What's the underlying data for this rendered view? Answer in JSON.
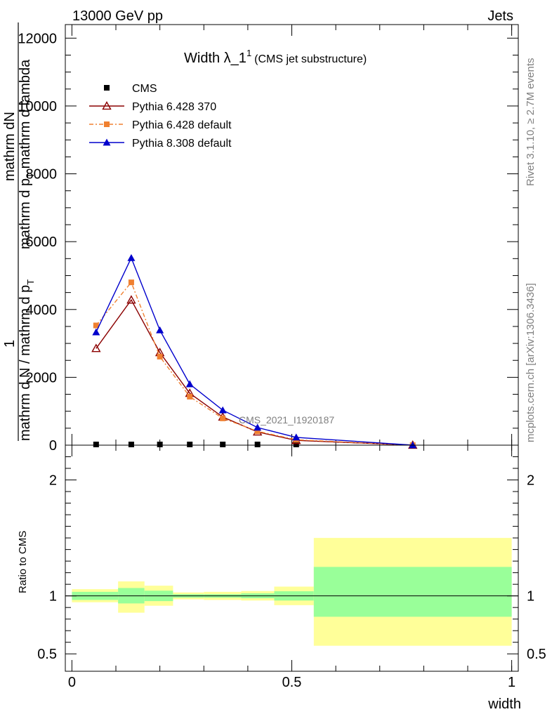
{
  "header": {
    "left": "13000 GeV pp",
    "right": "Jets"
  },
  "side": {
    "rivet": "Rivet 3.1.10, ≥ 2.7M events",
    "mcplots": "mcplots.cern.ch [arXiv:1306.3436]"
  },
  "title": {
    "main": "Width λ_1",
    "sup": "1",
    "sub": "(CMS jet substructure)"
  },
  "watermark": "CMS_2021_I1920187",
  "ylabel_top": {
    "numer1": "mathrm dN",
    "numer2": "mathrm d p",
    "numer2_sub": "T",
    "numer2_rest": " mathrm d lambda",
    "lead": "1",
    "denom1": "mathrm d N / mathrm d p",
    "denom1_sub": "T"
  },
  "ylabel_ratio": "Ratio to CMS",
  "xlabel": "width",
  "colors": {
    "cms": "#000000",
    "py6_370": "#8b0000",
    "py6_default": "#f08030",
    "py8_default": "#0000cc",
    "band_inner": "#99ff99",
    "band_outer": "#ffff99"
  },
  "chart_data": [
    {
      "type": "line",
      "xlim": [
        -0.015,
        1.015
      ],
      "ylim": [
        0,
        12400
      ],
      "yticks": [
        0,
        2000,
        4000,
        6000,
        8000,
        10000,
        12000
      ],
      "ytick_labels": [
        "0",
        "2000",
        "4000",
        "6000",
        "8000",
        "10000",
        "12000"
      ],
      "legend_position": "top-left",
      "x": [
        0.055,
        0.135,
        0.2,
        0.268,
        0.343,
        0.422,
        0.51,
        0.775
      ],
      "series": [
        {
          "name": "CMS",
          "marker": "filled-square",
          "values": [
            5,
            5,
            5,
            5,
            5,
            5,
            5,
            0
          ]
        },
        {
          "name": "Pythia 6.428 370",
          "marker": "open-triangle",
          "values": [
            2850,
            4280,
            2730,
            1530,
            830,
            390,
            140,
            0
          ]
        },
        {
          "name": "Pythia 6.428 default",
          "marker": "filled-square",
          "dashed": true,
          "values": [
            3530,
            4800,
            2610,
            1430,
            790,
            410,
            160,
            0
          ]
        },
        {
          "name": "Pythia 8.308 default",
          "marker": "filled-triangle",
          "values": [
            3330,
            5520,
            3390,
            1800,
            1030,
            520,
            230,
            0
          ]
        }
      ]
    },
    {
      "type": "area",
      "ylabel": "Ratio to CMS",
      "xlabel": "width",
      "xlim": [
        -0.015,
        1.015
      ],
      "ylim": [
        0.35,
        2.3
      ],
      "yticks": [
        0.5,
        1,
        2
      ],
      "ytick_labels": [
        "0.5",
        "1",
        "2"
      ],
      "xticks": [
        0,
        0.5,
        1
      ],
      "xtick_labels": [
        "0",
        "0.5",
        "1"
      ],
      "reference": 1.0,
      "bins": [
        {
          "x0": 0.0,
          "x1": 0.105,
          "inner": [
            0.965,
            1.035
          ],
          "outer": [
            0.945,
            1.058
          ]
        },
        {
          "x0": 0.105,
          "x1": 0.165,
          "inner": [
            0.935,
            1.068
          ],
          "outer": [
            0.855,
            1.125
          ]
        },
        {
          "x0": 0.165,
          "x1": 0.23,
          "inner": [
            0.955,
            1.045
          ],
          "outer": [
            0.915,
            1.088
          ]
        },
        {
          "x0": 0.23,
          "x1": 0.3,
          "inner": [
            0.985,
            1.015
          ],
          "outer": [
            0.97,
            1.03
          ]
        },
        {
          "x0": 0.3,
          "x1": 0.385,
          "inner": [
            0.985,
            1.015
          ],
          "outer": [
            0.965,
            1.035
          ]
        },
        {
          "x0": 0.385,
          "x1": 0.46,
          "inner": [
            0.98,
            1.022
          ],
          "outer": [
            0.96,
            1.042
          ]
        },
        {
          "x0": 0.46,
          "x1": 0.55,
          "inner": [
            0.96,
            1.04
          ],
          "outer": [
            0.92,
            1.08
          ]
        },
        {
          "x0": 0.55,
          "x1": 1.0,
          "inner": [
            0.82,
            1.25
          ],
          "outer": [
            0.57,
            1.5
          ]
        }
      ]
    }
  ]
}
